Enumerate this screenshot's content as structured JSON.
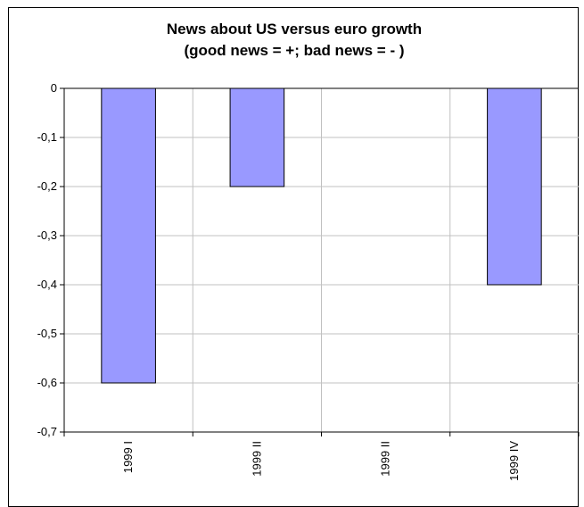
{
  "chart_data": {
    "type": "bar",
    "title": "News about US versus euro growth",
    "subtitle": "(good news = +; bad news = - )",
    "categories": [
      "1999 I",
      "1999 II",
      "1999 II",
      "1999 IV"
    ],
    "values": [
      -0.6,
      -0.2,
      0,
      -0.4
    ],
    "ylim": [
      -0.7,
      0
    ],
    "yticks": [
      0,
      -0.1,
      -0.2,
      -0.3,
      -0.4,
      -0.5,
      -0.6,
      -0.7
    ],
    "ytick_labels": [
      "0",
      "-0,1",
      "-0,2",
      "-0,3",
      "-0,4",
      "-0,5",
      "-0,6",
      "-0,7"
    ],
    "xlabel": "",
    "ylabel": "",
    "grid": true,
    "legend": "none",
    "bar_color": "#9999ff",
    "grid_color": "#c0c0c0"
  }
}
